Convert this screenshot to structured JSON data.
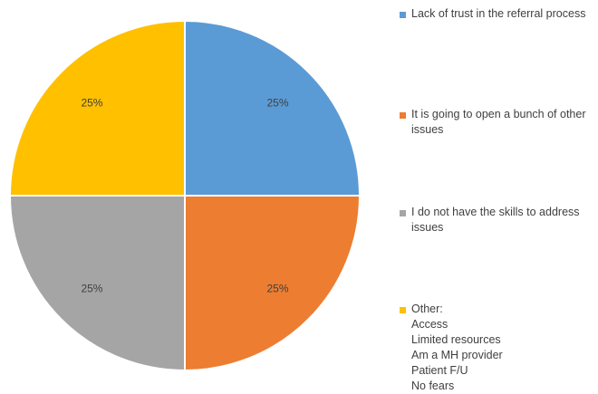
{
  "chart_data": {
    "type": "pie",
    "categories": [
      "Lack of trust in the referral process",
      "It is going to open a bunch of other issues",
      "I do not have the skills to address issues",
      "Other:"
    ],
    "values": [
      25,
      25,
      25,
      25
    ],
    "data_labels": [
      "25%",
      "25%",
      "25%",
      "25%"
    ],
    "colors": [
      "#5B9BD5",
      "#ED7D31",
      "#A5A5A5",
      "#FFC000"
    ],
    "legend_placement": "right",
    "start_angle": "12 o'clock",
    "direction": "clockwise"
  },
  "legend": [
    {
      "lines": [
        "Lack of trust in the referral process"
      ],
      "color": "#5B9BD5"
    },
    {
      "lines": [
        "It is going to open a bunch of other",
        "issues"
      ],
      "color": "#ED7D31"
    },
    {
      "lines": [
        "I do not have the skills to address",
        "issues"
      ],
      "color": "#A5A5A5"
    },
    {
      "lines": [
        "Other:",
        "Access",
        "Limited resources",
        "Am a MH provider",
        "Patient F/U",
        "No fears"
      ],
      "color": "#FFC000"
    }
  ]
}
